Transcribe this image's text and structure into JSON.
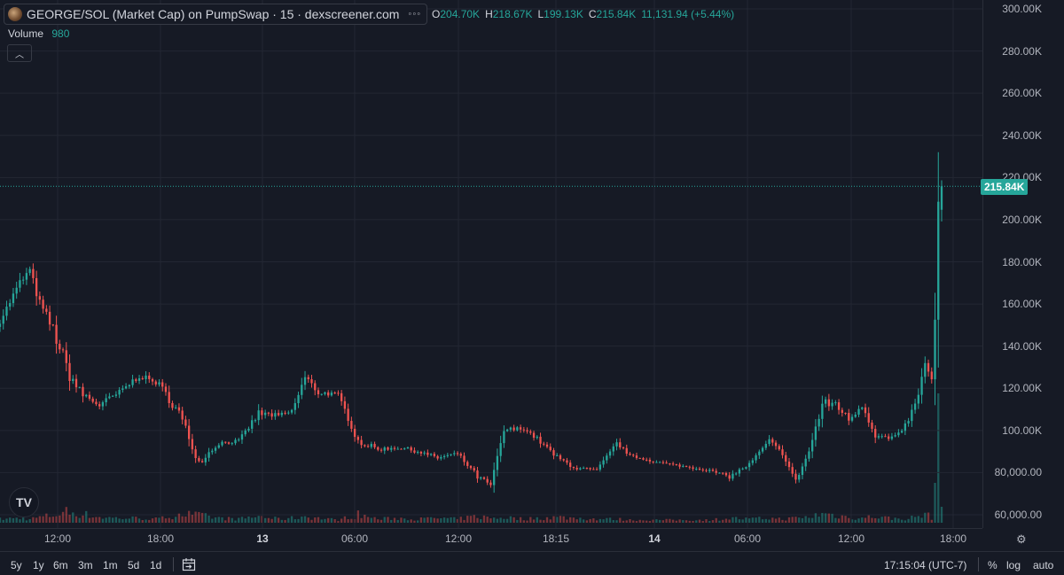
{
  "legend": {
    "title": "GEORGE/SOL (Market Cap) on PumpSwap · 15 · dexscreener.com",
    "more_icon": "more-dots-icon",
    "ohlc": {
      "o_key": "O",
      "o_val": "204.70K",
      "h_key": "H",
      "h_val": "218.67K",
      "l_key": "L",
      "l_val": "199.13K",
      "c_key": "C",
      "c_val": "215.84K",
      "change": "11,131.94 (+5.44%)"
    },
    "volume_label": "Volume",
    "volume_value": "980",
    "collapse_icon": "chevron-up-icon"
  },
  "price_axis": {
    "ticks": [
      "300.00K",
      "280.00K",
      "260.00K",
      "240.00K",
      "220.00K",
      "200.00K",
      "180.00K",
      "160.00K",
      "140.00K",
      "120.00K",
      "100.00K",
      "80,000.00",
      "60,000.00"
    ],
    "last_price": "215.84K"
  },
  "time_axis": {
    "ticks": [
      {
        "label": "12:00",
        "day": false
      },
      {
        "label": "18:00",
        "day": false
      },
      {
        "label": "13",
        "day": true
      },
      {
        "label": "06:00",
        "day": false
      },
      {
        "label": "12:00",
        "day": false
      },
      {
        "label": "18:15",
        "day": false
      },
      {
        "label": "14",
        "day": true
      },
      {
        "label": "06:00",
        "day": false
      },
      {
        "label": "12:00",
        "day": false
      },
      {
        "label": "18:00",
        "day": false
      }
    ],
    "settings_icon": "gear-icon"
  },
  "bottom_bar": {
    "ranges": [
      "5y",
      "1y",
      "6m",
      "3m",
      "1m",
      "5d",
      "1d"
    ],
    "calendar_icon": "calendar-goto-icon",
    "time": "17:15:04 (UTC-7)",
    "percent": "%",
    "log": "log",
    "auto": "auto"
  },
  "logo_text": "TV",
  "colors": {
    "up": "#26a69a",
    "down": "#ef5350",
    "background": "#161a25",
    "grid": "#232733"
  },
  "chart_data": {
    "type": "candlestick",
    "title": "GEORGE/SOL (Market Cap) on PumpSwap · 15 · dexscreener.com",
    "ylim": [
      55000,
      305000
    ],
    "y_ticks": [
      60000,
      80000,
      100000,
      120000,
      140000,
      160000,
      180000,
      200000,
      220000,
      240000,
      260000,
      280000,
      300000
    ],
    "x_labels": [
      "12:00",
      "18:00",
      "13",
      "06:00",
      "12:00",
      "18:15",
      "14",
      "06:00",
      "12:00",
      "18:00"
    ],
    "last_close": 215840,
    "anchors": [
      [
        0,
        152000,
        0.3
      ],
      [
        6,
        170000,
        0.4
      ],
      [
        9,
        176000,
        0.3
      ],
      [
        12,
        160000,
        0.5
      ],
      [
        16,
        148000,
        0.7
      ],
      [
        20,
        130000,
        1.1
      ],
      [
        24,
        118000,
        0.9
      ],
      [
        30,
        112000,
        0.5
      ],
      [
        36,
        118000,
        0.4
      ],
      [
        42,
        126000,
        0.4
      ],
      [
        48,
        122000,
        0.3
      ],
      [
        54,
        108000,
        0.9
      ],
      [
        60,
        85000,
        0.7
      ],
      [
        66,
        94000,
        0.4
      ],
      [
        72,
        95000,
        0.3
      ],
      [
        78,
        108000,
        0.6
      ],
      [
        84,
        107000,
        0.3
      ],
      [
        88,
        109000,
        0.4
      ],
      [
        92,
        125000,
        0.6
      ],
      [
        96,
        118000,
        0.4
      ],
      [
        102,
        117000,
        0.2
      ],
      [
        108,
        95000,
        0.8
      ],
      [
        114,
        91000,
        0.3
      ],
      [
        120,
        92000,
        0.4
      ],
      [
        126,
        90000,
        0.3
      ],
      [
        132,
        87000,
        0.4
      ],
      [
        138,
        89000,
        0.3
      ],
      [
        144,
        78000,
        0.6
      ],
      [
        148,
        74000,
        0.4
      ],
      [
        152,
        100000,
        0.5
      ],
      [
        158,
        101000,
        0.3
      ],
      [
        162,
        96000,
        0.4
      ],
      [
        168,
        87000,
        0.5
      ],
      [
        174,
        82000,
        0.4
      ],
      [
        180,
        81000,
        0.3
      ],
      [
        186,
        94000,
        0.3
      ],
      [
        190,
        88000,
        0.2
      ],
      [
        198,
        85000,
        0.2
      ],
      [
        206,
        83000,
        0.2
      ],
      [
        214,
        81000,
        0.2
      ],
      [
        220,
        78000,
        0.4
      ],
      [
        226,
        84000,
        0.3
      ],
      [
        232,
        95000,
        0.4
      ],
      [
        236,
        89000,
        0.3
      ],
      [
        240,
        76000,
        0.4
      ],
      [
        244,
        90000,
        0.5
      ],
      [
        248,
        112000,
        0.9
      ],
      [
        252,
        113000,
        0.7
      ],
      [
        256,
        105000,
        0.5
      ],
      [
        260,
        112000,
        0.4
      ],
      [
        264,
        98000,
        0.6
      ],
      [
        268,
        96000,
        0.4
      ],
      [
        272,
        99000,
        0.3
      ],
      [
        276,
        112000,
        0.5
      ],
      [
        279,
        130000,
        0.8
      ],
      [
        281,
        125000,
        0.5
      ],
      [
        282,
        150000,
        1.2
      ],
      [
        283,
        205000,
        2.5
      ],
      [
        284,
        215840,
        1.0
      ]
    ]
  }
}
